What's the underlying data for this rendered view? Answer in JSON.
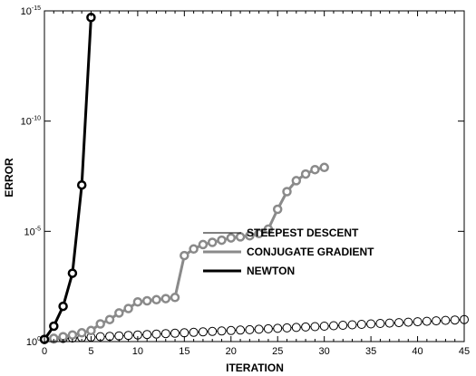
{
  "chart_data": {
    "type": "line",
    "title": "",
    "xlabel": "ITERATION",
    "ylabel": "ERROR",
    "xlim": [
      0,
      45
    ],
    "ylim_log10": [
      -15,
      0
    ],
    "yscale": "log",
    "grid": false,
    "legend_placement": "lower-right",
    "x_ticks": [
      0,
      5,
      10,
      15,
      20,
      25,
      30,
      35,
      40,
      45
    ],
    "x_tick_labels": [
      "0",
      "5",
      "10",
      "15",
      "20",
      "25",
      "30",
      "35",
      "40",
      "45"
    ],
    "y_ticks_log10": [
      0,
      -5,
      -10,
      -15
    ],
    "y_tick_labels": [
      {
        "base": "10",
        "exp": "0"
      },
      {
        "base": "10",
        "exp": "-5"
      },
      {
        "base": "10",
        "exp": "-10"
      },
      {
        "base": "10",
        "exp": "-15"
      }
    ],
    "series": [
      {
        "name": "STEEPEST DESCENT",
        "color": "#000000",
        "style": "thin",
        "x": [
          0,
          1,
          2,
          3,
          4,
          5,
          6,
          7,
          8,
          9,
          10,
          11,
          12,
          13,
          14,
          15,
          16,
          17,
          18,
          19,
          20,
          21,
          22,
          23,
          24,
          25,
          26,
          27,
          28,
          29,
          30,
          31,
          32,
          33,
          34,
          35,
          36,
          37,
          38,
          39,
          40,
          41,
          42,
          43,
          44,
          45
        ],
        "log10_error": [
          -0.1,
          -0.12,
          -0.14,
          -0.16,
          -0.18,
          -0.2,
          -0.22,
          -0.24,
          -0.26,
          -0.28,
          -0.3,
          -0.32,
          -0.34,
          -0.36,
          -0.38,
          -0.4,
          -0.42,
          -0.44,
          -0.46,
          -0.48,
          -0.5,
          -0.52,
          -0.54,
          -0.56,
          -0.58,
          -0.6,
          -0.62,
          -0.64,
          -0.66,
          -0.68,
          -0.7,
          -0.72,
          -0.74,
          -0.76,
          -0.78,
          -0.8,
          -0.82,
          -0.84,
          -0.86,
          -0.88,
          -0.9,
          -0.92,
          -0.94,
          -0.96,
          -0.98,
          -1.0
        ]
      },
      {
        "name": "CONJUGATE GRADIENT",
        "color": "#8a8a8a",
        "style": "thick",
        "x": [
          0,
          1,
          2,
          3,
          4,
          5,
          6,
          7,
          8,
          9,
          10,
          11,
          12,
          13,
          14,
          15,
          16,
          17,
          18,
          19,
          20,
          21,
          22,
          23,
          24,
          25,
          26,
          27,
          28,
          29,
          30
        ],
        "log10_error": [
          -0.1,
          -0.15,
          -0.22,
          -0.3,
          -0.4,
          -0.5,
          -0.8,
          -1.0,
          -1.3,
          -1.5,
          -1.8,
          -1.85,
          -1.9,
          -1.95,
          -2.0,
          -3.9,
          -4.2,
          -4.4,
          -4.5,
          -4.6,
          -4.7,
          -4.75,
          -4.8,
          -4.9,
          -5.1,
          -6.0,
          -6.8,
          -7.3,
          -7.6,
          -7.8,
          -7.9
        ]
      },
      {
        "name": "NEWTON",
        "color": "#000000",
        "style": "thick",
        "x": [
          0,
          1,
          2,
          3,
          4,
          5
        ],
        "log10_error": [
          -0.1,
          -0.7,
          -1.6,
          -3.1,
          -7.1,
          -14.7
        ]
      }
    ]
  }
}
